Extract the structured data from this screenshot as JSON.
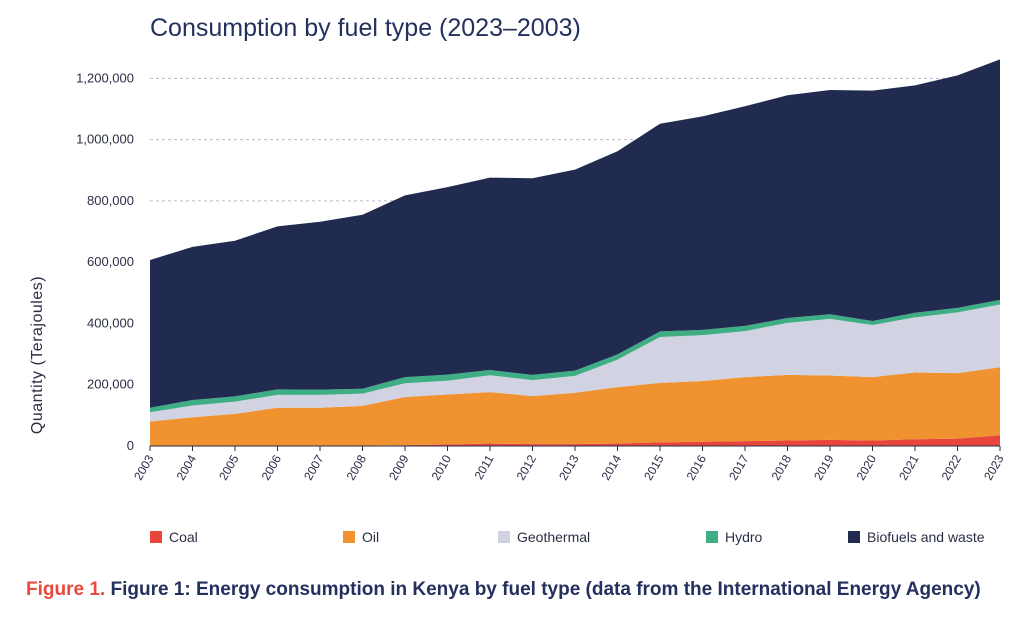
{
  "chart_data": {
    "type": "area",
    "stacked": true,
    "title": "Consumption by fuel type (2023–2003)",
    "ylabel": "Quantity (Terajoules)",
    "xlabel": "",
    "ylim": [
      0,
      1260000
    ],
    "yticks": [
      0,
      200000,
      400000,
      600000,
      800000,
      1000000,
      1200000
    ],
    "ytick_labels": [
      "0",
      "200,000",
      "400,000",
      "600,000",
      "800,000",
      "1,000,000",
      "1,200,000"
    ],
    "grid": "horizontal dashed",
    "legend_position": "bottom",
    "x": [
      "2003",
      "2004",
      "2005",
      "2006",
      "2007",
      "2008",
      "2009",
      "2010",
      "2011",
      "2012",
      "2013",
      "2014",
      "2015",
      "2016",
      "2017",
      "2018",
      "2019",
      "2020",
      "2021",
      "2022",
      "2023"
    ],
    "series": [
      {
        "name": "Coal",
        "color": "#e8463d",
        "values": [
          1000,
          1000,
          1000,
          1000,
          1000,
          1000,
          3000,
          5000,
          8000,
          6000,
          6000,
          8000,
          12000,
          14000,
          16000,
          18000,
          20000,
          18000,
          22000,
          24000,
          35000
        ]
      },
      {
        "name": "Oil",
        "color": "#f0922f",
        "values": [
          79000,
          93000,
          104000,
          124000,
          124000,
          130000,
          157000,
          163000,
          168000,
          157000,
          168000,
          184000,
          194000,
          198000,
          209000,
          214000,
          210000,
          207000,
          218000,
          214000,
          222000
        ]
      },
      {
        "name": "Geothermal",
        "color": "#d1d3e2",
        "values": [
          30000,
          38000,
          40000,
          42000,
          42000,
          40000,
          45000,
          45000,
          55000,
          52000,
          55000,
          90000,
          150000,
          150000,
          150000,
          170000,
          185000,
          170000,
          180000,
          198000,
          205000
        ]
      },
      {
        "name": "Hydro",
        "color": "#3fae84",
        "values": [
          15000,
          18000,
          17000,
          18000,
          17000,
          16000,
          20000,
          20000,
          17000,
          17000,
          17000,
          17000,
          18000,
          17000,
          17000,
          16000,
          15000,
          13000,
          15000,
          15000,
          15000
        ]
      },
      {
        "name": "Biofuels and waste",
        "color": "#212b50",
        "values": [
          482000,
          500000,
          508000,
          532000,
          548000,
          568000,
          593000,
          612000,
          628000,
          642000,
          656000,
          663000,
          678000,
          697000,
          717000,
          727000,
          732000,
          752000,
          742000,
          759000,
          785000
        ]
      }
    ],
    "caption": {
      "label": "Figure 1.",
      "text": "Figure 1: Energy consumption in Kenya by fuel type (data from the International Energy Agency)"
    }
  }
}
